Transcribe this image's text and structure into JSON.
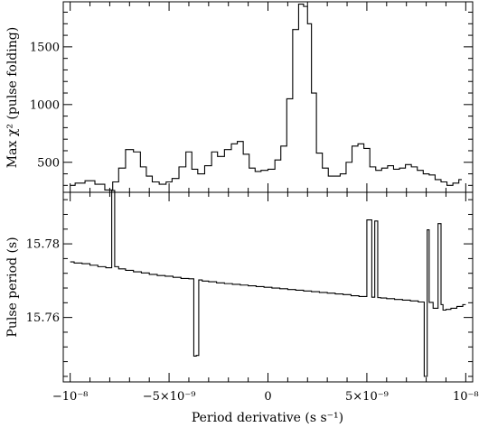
{
  "chart_data": [
    {
      "type": "line",
      "step": true,
      "ylabel": "Max χ² (pulse folding)",
      "ylim": [
        240,
        1890
      ],
      "yticks": [
        500,
        1000,
        1500
      ],
      "ytick_labels": [
        "500",
        "1000",
        "1500"
      ],
      "x": [
        -1e-08,
        -9.5e-09,
        -9e-09,
        -8.5e-09,
        -8e-09,
        -7.7e-09,
        -7.4e-09,
        -7e-09,
        -6.6e-09,
        -6.3e-09,
        -6e-09,
        -5.7e-09,
        -5.3e-09,
        -5e-09,
        -4.7e-09,
        -4.3e-09,
        -4e-09,
        -3.7e-09,
        -3.4e-09,
        -3e-09,
        -2.7e-09,
        -2.4e-09,
        -2e-09,
        -1.7e-09,
        -1.4e-09,
        -1.1e-09,
        -8e-10,
        -5e-10,
        -2e-10,
        2e-10,
        5e-10,
        8e-10,
        1.1e-09,
        1.4e-09,
        1.7e-09,
        1.9e-09,
        2.1e-09,
        2.3e-09,
        2.6e-09,
        2.9e-09,
        3.2e-09,
        3.5e-09,
        3.8e-09,
        4.1e-09,
        4.4e-09,
        4.7e-09,
        5e-09,
        5.3e-09,
        5.6e-09,
        5.9e-09,
        6.2e-09,
        6.5e-09,
        6.8e-09,
        7.1e-09,
        7.4e-09,
        7.7e-09,
        8e-09,
        8.3e-09,
        8.6e-09,
        8.9e-09,
        9.2e-09,
        9.5e-09,
        9.8e-09
      ],
      "values": [
        300,
        320,
        340,
        310,
        260,
        330,
        450,
        610,
        590,
        460,
        380,
        330,
        310,
        330,
        360,
        460,
        590,
        440,
        400,
        470,
        590,
        550,
        610,
        660,
        680,
        570,
        450,
        420,
        430,
        440,
        520,
        640,
        1050,
        1650,
        1870,
        1850,
        1700,
        1100,
        580,
        450,
        380,
        380,
        400,
        500,
        640,
        660,
        620,
        460,
        430,
        450,
        470,
        440,
        450,
        480,
        460,
        430,
        400,
        390,
        350,
        330,
        300,
        320,
        350
      ]
    },
    {
      "type": "line",
      "step": true,
      "xlabel": "Period derivative (s s⁻¹)",
      "ylabel": "Pulse period (s)",
      "ylim": [
        15.7425,
        15.794
      ],
      "yticks": [
        15.76,
        15.78
      ],
      "ytick_labels": [
        "15.76",
        "15.78"
      ],
      "xlim": [
        -1.035e-08,
        1.035e-08
      ],
      "xticks": [
        -1e-08,
        -5e-09,
        0,
        5e-09,
        1e-08
      ],
      "xtick_labels": [
        "−10⁻⁸",
        "−5×10⁻⁹",
        "0",
        "5×10⁻⁹",
        "10⁻⁸"
      ],
      "x": [
        -1e-08,
        -9.6e-09,
        -9.2e-09,
        -8.8e-09,
        -8.4e-09,
        -8e-09,
        -7.8e-09,
        -7.7e-09,
        -7.4e-09,
        -7e-09,
        -6.6e-09,
        -6.2e-09,
        -5.8e-09,
        -5.4e-09,
        -5e-09,
        -4.6e-09,
        -4.2e-09,
        -3.8e-09,
        -3.7e-09,
        -3.55e-09,
        -3.45e-09,
        -3.2e-09,
        -2.8e-09,
        -2.4e-09,
        -2e-09,
        -1.6e-09,
        -1.2e-09,
        -8e-10,
        -4e-10,
        0,
        4e-10,
        8e-10,
        1.2e-09,
        1.6e-09,
        2e-09,
        2.4e-09,
        2.8e-09,
        3.2e-09,
        3.6e-09,
        4e-09,
        4.4e-09,
        4.8e-09,
        5.2e-09,
        5.3e-09,
        5.5e-09,
        5.6e-09,
        5.8e-09,
        6.2e-09,
        6.6e-09,
        7e-09,
        7.4e-09,
        7.8e-09,
        8e-09,
        8.1e-09,
        8.2e-09,
        8.5e-09,
        8.7e-09,
        8.8e-09,
        8.9e-09,
        9.1e-09,
        9.4e-09,
        9.7e-09,
        1e-08
      ],
      "values": [
        15.7751,
        15.7748,
        15.7746,
        15.7742,
        15.7738,
        15.7735,
        15.7945,
        15.7738,
        15.7732,
        15.7728,
        15.7724,
        15.7721,
        15.7717,
        15.7714,
        15.7712,
        15.7709,
        15.7706,
        15.7705,
        15.7495,
        15.7497,
        15.7702,
        15.7699,
        15.7697,
        15.7694,
        15.7692,
        15.769,
        15.7688,
        15.7686,
        15.7684,
        15.7682,
        15.768,
        15.7678,
        15.7676,
        15.7674,
        15.7672,
        15.767,
        15.7668,
        15.7666,
        15.7664,
        15.7662,
        15.7659,
        15.7657,
        15.7865,
        15.7655,
        15.7862,
        15.7654,
        15.7653,
        15.7651,
        15.7649,
        15.7647,
        15.7645,
        15.7642,
        15.744,
        15.7838,
        15.7641,
        15.7625,
        15.7855,
        15.7635,
        15.762,
        15.7622,
        15.7625,
        15.763,
        15.7635
      ]
    }
  ]
}
